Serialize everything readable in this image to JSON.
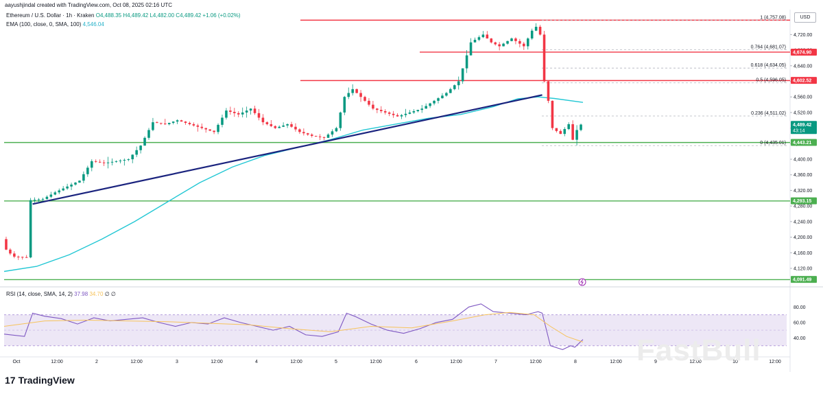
{
  "header": {
    "caption": "aayushjindal created with TradingView.com, Oct 08, 2025 02:16 UTC",
    "symbol": "Ethereum / U.S. Dollar",
    "interval": "1h",
    "exchange": "Kraken",
    "ohlc": "O4,488.35 H4,489.42 L4,482.00 C4,489.42 +1.06 (+0.02%)",
    "ema_label": "EMA (100, close, 0, SMA, 100)",
    "ema_value": "4,546.04",
    "currency": "USD"
  },
  "rsi_legend": {
    "label": "RSI (14, close, SMA, 14, 2)",
    "value": "37.98",
    "ma_value": "34.70",
    "extra": "∅ ∅"
  },
  "colors": {
    "up": "#089981",
    "down": "#f23645",
    "support": "#4caf50",
    "resistance": "#f23645",
    "trend": "#1a237e",
    "ema": "#22c7d4",
    "rsi": "#7e57c2",
    "rsi_ma": "#f7c35a",
    "rsi_band": "#ede7f6"
  },
  "chart_data": [
    {
      "type": "candlestick",
      "title": "Ethereum / U.S. Dollar · 1h · Kraken",
      "ylim": [
        4090,
        4770
      ],
      "y_ticks": [
        "4,720.00",
        "4,680.00",
        "4,640.00",
        "4,600.00",
        "4,560.00",
        "4,520.00",
        "4,480.00",
        "4,440.00",
        "4,400.00",
        "4,360.00",
        "4,320.00",
        "4,280.00",
        "4,240.00",
        "4,200.00",
        "4,160.00",
        "4,120.00"
      ],
      "x_labels": [
        "Oct",
        "12:00",
        "2",
        "12:00",
        "3",
        "12:00",
        "4",
        "12:00",
        "5",
        "12:00",
        "6",
        "12:00",
        "7",
        "12:00",
        "8",
        "12:00",
        "9",
        "12:00",
        "10",
        "12:00"
      ],
      "price_path": [
        [
          0,
          4195
        ],
        [
          1,
          4168
        ],
        [
          2,
          4158
        ],
        [
          3,
          4150
        ],
        [
          6,
          4148
        ],
        [
          7,
          4295
        ],
        [
          10,
          4298
        ],
        [
          13,
          4315
        ],
        [
          16,
          4330
        ],
        [
          19,
          4345
        ],
        [
          22,
          4395
        ],
        [
          25,
          4390
        ],
        [
          28,
          4395
        ],
        [
          31,
          4400
        ],
        [
          34,
          4435
        ],
        [
          37,
          4495
        ],
        [
          40,
          4490
        ],
        [
          43,
          4500
        ],
        [
          46,
          4490
        ],
        [
          49,
          4480
        ],
        [
          52,
          4470
        ],
        [
          55,
          4525
        ],
        [
          58,
          4515
        ],
        [
          61,
          4530
        ],
        [
          64,
          4495
        ],
        [
          67,
          4480
        ],
        [
          70,
          4490
        ],
        [
          73,
          4470
        ],
        [
          76,
          4460
        ],
        [
          79,
          4455
        ],
        [
          82,
          4480
        ],
        [
          84,
          4560
        ],
        [
          86,
          4580
        ],
        [
          88,
          4560
        ],
        [
          91,
          4530
        ],
        [
          94,
          4520
        ],
        [
          97,
          4510
        ],
        [
          100,
          4520
        ],
        [
          103,
          4530
        ],
        [
          106,
          4550
        ],
        [
          109,
          4570
        ],
        [
          112,
          4600
        ],
        [
          115,
          4700
        ],
        [
          118,
          4720
        ],
        [
          120,
          4700
        ],
        [
          122,
          4690
        ],
        [
          125,
          4710
        ],
        [
          128,
          4690
        ],
        [
          130,
          4730
        ],
        [
          131,
          4740
        ],
        [
          132,
          4720
        ],
        [
          133,
          4600
        ],
        [
          134,
          4550
        ],
        [
          135,
          4480
        ],
        [
          137,
          4465
        ],
        [
          139,
          4490
        ],
        [
          140,
          4450
        ],
        [
          141,
          4475
        ],
        [
          142,
          4489
        ]
      ],
      "ema100_path": [
        [
          0,
          4112
        ],
        [
          8,
          4125
        ],
        [
          16,
          4155
        ],
        [
          24,
          4195
        ],
        [
          32,
          4240
        ],
        [
          40,
          4290
        ],
        [
          48,
          4340
        ],
        [
          56,
          4380
        ],
        [
          64,
          4410
        ],
        [
          72,
          4430
        ],
        [
          80,
          4450
        ],
        [
          88,
          4475
        ],
        [
          96,
          4490
        ],
        [
          104,
          4505
        ],
        [
          112,
          4515
        ],
        [
          120,
          4535
        ],
        [
          126,
          4555
        ],
        [
          131,
          4560
        ],
        [
          135,
          4556
        ],
        [
          142,
          4546
        ]
      ],
      "levels": [
        {
          "price": 4757.08,
          "label": "1 (4,757.08)",
          "kind": "fib"
        },
        {
          "price": 4681.07,
          "label": "0.764 (4,681.07)",
          "kind": "fib"
        },
        {
          "price": 4634.05,
          "label": "0.618 (4,634.05)",
          "kind": "fib"
        },
        {
          "price": 4596.05,
          "label": "0.5 (4,596.05)",
          "kind": "fib"
        },
        {
          "price": 4511.02,
          "label": "0.236 (4,511.02)",
          "kind": "fib"
        },
        {
          "price": 4435.01,
          "label": "0 (4,435.01)",
          "kind": "fib"
        }
      ],
      "horizontal_lines": [
        {
          "price": 4757,
          "role": "resistance"
        },
        {
          "price": 4675,
          "role": "resistance"
        },
        {
          "price": 4602,
          "role": "resistance"
        },
        {
          "price": 4443,
          "role": "support"
        },
        {
          "price": 4293,
          "role": "support"
        },
        {
          "price": 4091,
          "role": "support"
        }
      ],
      "price_tags": [
        {
          "price": 4674.9,
          "text": "4,674.90",
          "color": "#f23645"
        },
        {
          "price": 4602.52,
          "text": "4,602.52",
          "color": "#f23645"
        },
        {
          "price": 4489.42,
          "text": "4,489.42",
          "sub": "43:14",
          "color": "#089981"
        },
        {
          "price": 4443.21,
          "text": "4,443.21",
          "color": "#4caf50"
        },
        {
          "price": 4293.15,
          "text": "4,293.15",
          "color": "#4caf50"
        },
        {
          "price": 4091.49,
          "text": "4,091.49",
          "color": "#4caf50"
        }
      ],
      "trendline": {
        "from": [
          7,
          4285
        ],
        "to": [
          132,
          4565
        ]
      }
    },
    {
      "type": "line",
      "title": "RSI (14, close, SMA, 14, 2)",
      "ylim": [
        20,
        90
      ],
      "y_ticks": [
        "80.00",
        "60.00",
        "40.00"
      ],
      "band": [
        30,
        70
      ],
      "rsi_path": [
        [
          0,
          45
        ],
        [
          5,
          42
        ],
        [
          7,
          72
        ],
        [
          10,
          68
        ],
        [
          14,
          65
        ],
        [
          18,
          58
        ],
        [
          22,
          66
        ],
        [
          26,
          62
        ],
        [
          30,
          64
        ],
        [
          34,
          66
        ],
        [
          38,
          60
        ],
        [
          42,
          55
        ],
        [
          46,
          60
        ],
        [
          50,
          58
        ],
        [
          54,
          66
        ],
        [
          58,
          60
        ],
        [
          62,
          55
        ],
        [
          66,
          50
        ],
        [
          70,
          55
        ],
        [
          74,
          44
        ],
        [
          78,
          42
        ],
        [
          82,
          48
        ],
        [
          84,
          72
        ],
        [
          86,
          68
        ],
        [
          90,
          58
        ],
        [
          94,
          50
        ],
        [
          98,
          46
        ],
        [
          102,
          52
        ],
        [
          106,
          60
        ],
        [
          110,
          64
        ],
        [
          114,
          80
        ],
        [
          117,
          84
        ],
        [
          120,
          74
        ],
        [
          124,
          72
        ],
        [
          128,
          70
        ],
        [
          131,
          74
        ],
        [
          132,
          72
        ],
        [
          134,
          30
        ],
        [
          137,
          25
        ],
        [
          139,
          30
        ],
        [
          140,
          28
        ],
        [
          142,
          37.98
        ]
      ],
      "rsi_ma_path": [
        [
          0,
          55
        ],
        [
          10,
          62
        ],
        [
          20,
          63
        ],
        [
          30,
          62
        ],
        [
          40,
          61
        ],
        [
          50,
          59
        ],
        [
          60,
          57
        ],
        [
          70,
          52
        ],
        [
          80,
          48
        ],
        [
          90,
          55
        ],
        [
          100,
          53
        ],
        [
          110,
          62
        ],
        [
          118,
          70
        ],
        [
          124,
          73
        ],
        [
          130,
          70
        ],
        [
          134,
          55
        ],
        [
          138,
          42
        ],
        [
          142,
          34.7
        ]
      ]
    }
  ],
  "footer": {
    "brand": "TradingView",
    "brand_mark": "17",
    "watermark": "FastBull"
  }
}
